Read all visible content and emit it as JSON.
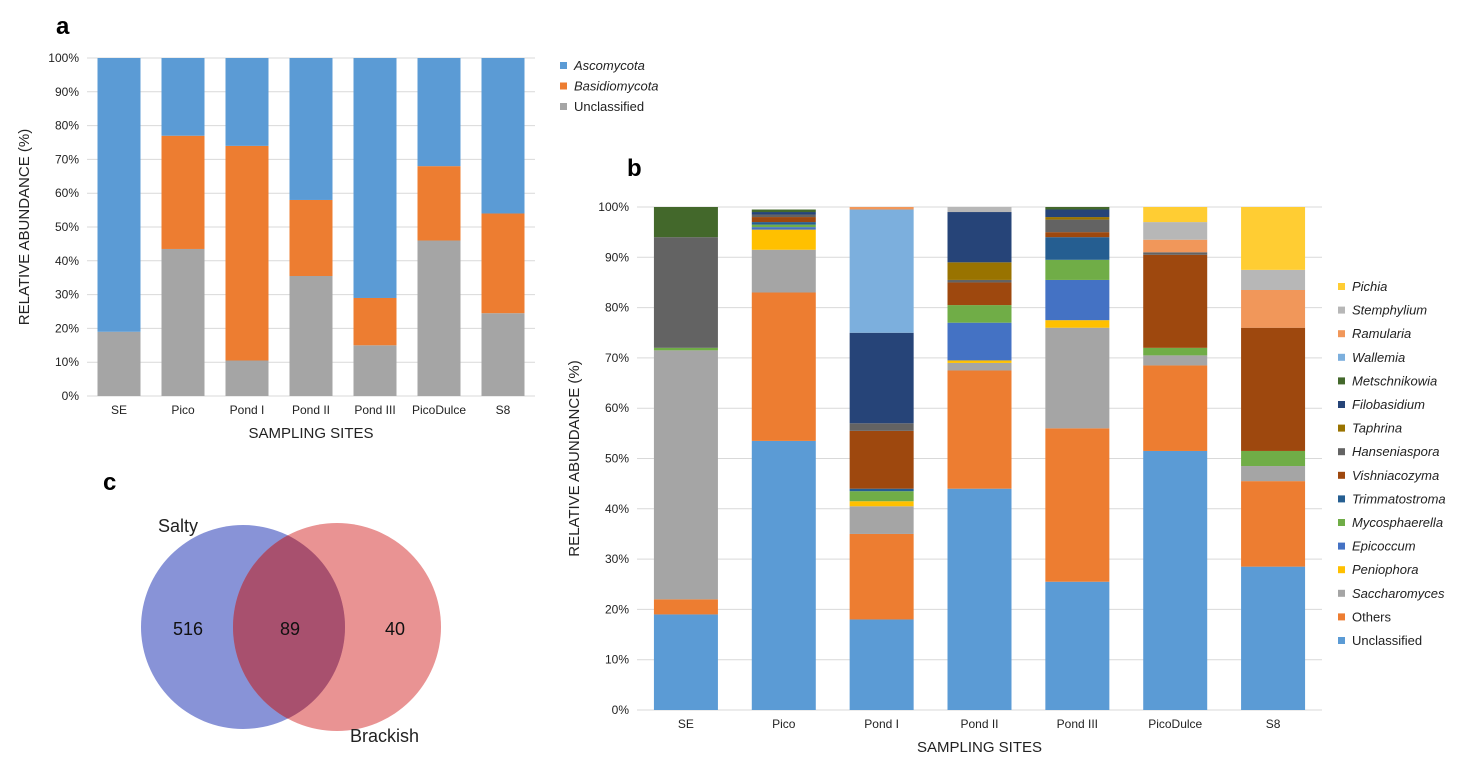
{
  "panels": {
    "a": "a",
    "b": "b",
    "c": "c"
  },
  "chart_data": [
    {
      "id": "a",
      "type": "bar",
      "stacked": true,
      "ylabel": "RELATIVE ABUNDANCE (%)",
      "xlabel": "SAMPLING SITES",
      "ylim": [
        0,
        100
      ],
      "yticks": [
        "0%",
        "10%",
        "20%",
        "30%",
        "40%",
        "50%",
        "60%",
        "70%",
        "80%",
        "90%",
        "100%"
      ],
      "categories": [
        "SE",
        "Pico",
        "Pond I",
        "Pond II",
        "Pond III",
        "PicoDulce",
        "S8"
      ],
      "series": [
        {
          "name": "Unclassified",
          "italic": false,
          "color": "#a5a5a5",
          "values": [
            19,
            43.5,
            10.5,
            35.5,
            15,
            46,
            24.5
          ]
        },
        {
          "name": "Basidiomycota",
          "italic": true,
          "color": "#ed7d31",
          "values": [
            0,
            33.5,
            63.5,
            22.5,
            14,
            22,
            29.5
          ]
        },
        {
          "name": "Ascomycota",
          "italic": true,
          "color": "#5b9bd5",
          "values": [
            81,
            23,
            26,
            42,
            71,
            32,
            46
          ]
        }
      ],
      "legend_order": [
        "Ascomycota",
        "Basidiomycota",
        "Unclassified"
      ]
    },
    {
      "id": "b",
      "type": "bar",
      "stacked": true,
      "ylabel": "RELATIVE ABUNDANCE (%)",
      "xlabel": "SAMPLING SITES",
      "ylim": [
        0,
        100
      ],
      "yticks": [
        "0%",
        "10%",
        "20%",
        "30%",
        "40%",
        "50%",
        "60%",
        "70%",
        "80%",
        "90%",
        "100%"
      ],
      "categories": [
        "SE",
        "Pico",
        "Pond I",
        "Pond II",
        "Pond III",
        "PicoDulce",
        "S8"
      ],
      "series": [
        {
          "name": "Unclassified",
          "italic": false,
          "color": "#5b9bd5",
          "values": [
            19,
            53.5,
            18,
            44,
            25.5,
            51.5,
            28.5
          ]
        },
        {
          "name": "Others",
          "italic": false,
          "color": "#ed7d31",
          "values": [
            3,
            29.5,
            17,
            23.5,
            30.5,
            17,
            17
          ]
        },
        {
          "name": "Saccharomyces",
          "italic": true,
          "color": "#a5a5a5",
          "values": [
            49.5,
            8.5,
            5.5,
            1.5,
            20,
            2,
            3
          ]
        },
        {
          "name": "Peniophora",
          "italic": true,
          "color": "#ffc000",
          "values": [
            0,
            4,
            1,
            0.5,
            1.5,
            0,
            0
          ]
        },
        {
          "name": "Epicoccum",
          "italic": true,
          "color": "#4472c4",
          "values": [
            0,
            0.5,
            0,
            7.5,
            8,
            0,
            0
          ]
        },
        {
          "name": "Mycosphaerella",
          "italic": true,
          "color": "#70ad47",
          "values": [
            0.5,
            0.5,
            2,
            3.5,
            4,
            1.5,
            3
          ]
        },
        {
          "name": "Trimmatostroma",
          "italic": true,
          "color": "#255e91",
          "values": [
            0,
            0.5,
            0.5,
            0,
            4.5,
            0,
            0
          ]
        },
        {
          "name": "Vishniacozyma",
          "italic": true,
          "color": "#9e480e",
          "values": [
            0,
            1,
            11.5,
            4.5,
            1,
            18.5,
            24.5
          ]
        },
        {
          "name": "Hanseniaspora",
          "italic": true,
          "color": "#636363",
          "values": [
            22,
            0.5,
            1.5,
            0.5,
            2.5,
            0.5,
            0
          ]
        },
        {
          "name": "Taphrina",
          "italic": true,
          "color": "#997300",
          "values": [
            0,
            0,
            0,
            3.5,
            0.5,
            0,
            0
          ]
        },
        {
          "name": "Filobasidium",
          "italic": true,
          "color": "#264478",
          "values": [
            0,
            0.5,
            18,
            10,
            1.5,
            0,
            0
          ]
        },
        {
          "name": "Metschnikowia",
          "italic": true,
          "color": "#43682b",
          "values": [
            6,
            0.5,
            0,
            0,
            0.5,
            0,
            0
          ]
        },
        {
          "name": "Wallemia",
          "italic": true,
          "color": "#7cafdd",
          "values": [
            0,
            0,
            24.5,
            0,
            0,
            0,
            0
          ]
        },
        {
          "name": "Ramularia",
          "italic": true,
          "color": "#f1975a",
          "values": [
            0,
            0,
            0.5,
            0,
            0,
            2.5,
            7.5
          ]
        },
        {
          "name": "Stemphylium",
          "italic": true,
          "color": "#b7b7b7",
          "values": [
            0,
            0,
            0,
            1,
            0,
            3.5,
            4
          ]
        },
        {
          "name": "Pichia",
          "italic": true,
          "color": "#ffcd33",
          "values": [
            0,
            0,
            0,
            0,
            0,
            3,
            12.5
          ]
        }
      ],
      "legend_order": [
        "Pichia",
        "Stemphylium",
        "Ramularia",
        "Wallemia",
        "Metschnikowia",
        "Filobasidium",
        "Taphrina",
        "Hanseniaspora",
        "Vishniacozyma",
        "Trimmatostroma",
        "Mycosphaerella",
        "Epicoccum",
        "Peniophora",
        "Saccharomyces",
        "Others",
        "Unclassified"
      ]
    }
  ],
  "venn": {
    "sets": [
      {
        "label": "Salty",
        "only": "516",
        "color": "#5a6ac8"
      },
      {
        "label": "Brackish",
        "only": "40",
        "color": "#e06a6a"
      }
    ],
    "shared": "89"
  }
}
